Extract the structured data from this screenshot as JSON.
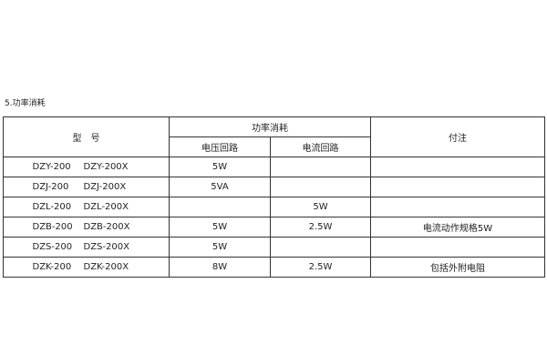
{
  "section_title": "5.功率消耗",
  "table": {
    "headers": {
      "model": "型　号",
      "power": "功率消耗",
      "voltage_circuit": "电压回路",
      "current_circuit": "电流回路",
      "note": "付注"
    },
    "rows": [
      {
        "model_a": "DZY-200",
        "model_b": "DZY-200X",
        "voltage": "5W",
        "current": "",
        "note": ""
      },
      {
        "model_a": "DZJ-200",
        "model_b": "DZJ-200X",
        "voltage": "5VA",
        "current": "",
        "note": ""
      },
      {
        "model_a": "DZL-200",
        "model_b": "DZL-200X",
        "voltage": "",
        "current": "5W",
        "note": ""
      },
      {
        "model_a": "DZB-200",
        "model_b": "DZB-200X",
        "voltage": "5W",
        "current": "2.5W",
        "note": "电流动作规格5W"
      },
      {
        "model_a": "DZS-200",
        "model_b": "DZS-200X",
        "voltage": "5W",
        "current": "",
        "note": ""
      },
      {
        "model_a": "DZK-200",
        "model_b": "DZK-200X",
        "voltage": "8W",
        "current": "2.5W",
        "note": "包括外附电阻"
      }
    ]
  }
}
